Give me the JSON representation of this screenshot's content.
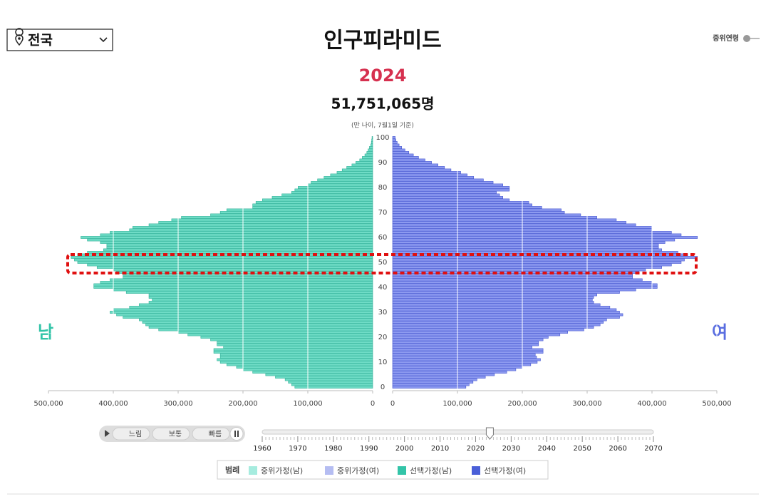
{
  "region": "전국",
  "median_age_toggle": "중위연령",
  "male_label": "남",
  "female_label": "여",
  "speed_buttons": [
    "느림",
    "보통",
    "빠름"
  ],
  "year": 2024,
  "total": "51,751,065명",
  "note": "(만 나이, 7월1일 기준)",
  "timeline": {
    "range": [
      1960,
      2070
    ],
    "ticks": [
      1960,
      1970,
      1980,
      1990,
      2000,
      2010,
      2020,
      2030,
      2040,
      2050,
      2060,
      2070
    ]
  },
  "legend": {
    "title": "범례",
    "items": [
      {
        "name": "중위가정(남)",
        "color": "#a6ecdf"
      },
      {
        "name": "중위가정(여)",
        "color": "#b5bdf2"
      },
      {
        "name": "선택가정(남)",
        "color": "#33c4a8"
      },
      {
        "name": "선택가정(여)",
        "color": "#4a5fd8"
      }
    ]
  },
  "chart_data": {
    "type": "pyramid",
    "title": "인구피라미드",
    "x": [
      0,
      1,
      2,
      3,
      4,
      5,
      6,
      7,
      8,
      9,
      10,
      11,
      12,
      13,
      14,
      15,
      16,
      17,
      18,
      19,
      20,
      21,
      22,
      23,
      24,
      25,
      26,
      27,
      28,
      29,
      30,
      31,
      32,
      33,
      34,
      35,
      36,
      37,
      38,
      39,
      40,
      41,
      42,
      43,
      44,
      45,
      46,
      47,
      48,
      49,
      50,
      51,
      52,
      53,
      54,
      55,
      56,
      57,
      58,
      59,
      60,
      61,
      62,
      63,
      64,
      65,
      66,
      67,
      68,
      69,
      70,
      71,
      72,
      73,
      74,
      75,
      76,
      77,
      78,
      79,
      80,
      81,
      82,
      83,
      84,
      85,
      86,
      87,
      88,
      89,
      90,
      91,
      92,
      93,
      94,
      95,
      96,
      97,
      98,
      99,
      100
    ],
    "ylim": [
      0,
      100
    ],
    "yticks": [
      0,
      10,
      20,
      30,
      40,
      50,
      60,
      70,
      80,
      90,
      100
    ],
    "xlim": [
      0,
      500000
    ],
    "xticks": [
      0,
      {
        "value": 100000,
        "label": "100,000"
      },
      {
        "value": 200000,
        "label": "200,000"
      },
      {
        "value": 300000,
        "label": "300,000"
      },
      {
        "value": 400000,
        "label": "400,000"
      },
      {
        "value": 500000,
        "label": "500,000"
      }
    ],
    "grid": true,
    "series": [
      {
        "name": "선택가정(남)",
        "color": "#6fdcc6",
        "side": "left",
        "values": [
          120000,
          125000,
          130000,
          135000,
          150000,
          165000,
          185000,
          200000,
          210000,
          225000,
          235000,
          240000,
          235000,
          235000,
          245000,
          245000,
          230000,
          240000,
          240000,
          250000,
          265000,
          285000,
          300000,
          330000,
          345000,
          350000,
          355000,
          360000,
          385000,
          395000,
          405000,
          400000,
          375000,
          360000,
          345000,
          340000,
          345000,
          345000,
          380000,
          400000,
          430000,
          430000,
          420000,
          405000,
          385000,
          385000,
          395000,
          400000,
          425000,
          440000,
          455000,
          460000,
          465000,
          455000,
          440000,
          415000,
          410000,
          410000,
          420000,
          440000,
          450000,
          420000,
          405000,
          375000,
          370000,
          345000,
          330000,
          310000,
          295000,
          250000,
          235000,
          225000,
          185000,
          185000,
          180000,
          170000,
          155000,
          140000,
          125000,
          120000,
          115000,
          100000,
          95000,
          85000,
          75000,
          65000,
          55000,
          47000,
          40000,
          32000,
          26000,
          20000,
          16000,
          12000,
          9000,
          7000,
          5000,
          3000,
          2000,
          1500,
          1000
        ]
      },
      {
        "name": "선택가정(여)",
        "color": "#8d9af0",
        "side": "right",
        "values": [
          113000,
          118000,
          124000,
          130000,
          143000,
          157000,
          176000,
          190000,
          200000,
          213000,
          223000,
          228000,
          222000,
          220000,
          232000,
          232000,
          215000,
          225000,
          225000,
          232000,
          240000,
          258000,
          270000,
          295000,
          310000,
          320000,
          325000,
          330000,
          350000,
          355000,
          350000,
          345000,
          335000,
          320000,
          310000,
          308000,
          310000,
          315000,
          350000,
          375000,
          408000,
          408000,
          400000,
          385000,
          370000,
          370000,
          380000,
          390000,
          415000,
          430000,
          445000,
          450000,
          470000,
          455000,
          440000,
          415000,
          410000,
          410000,
          420000,
          435000,
          470000,
          445000,
          430000,
          400000,
          400000,
          375000,
          360000,
          345000,
          315000,
          290000,
          265000,
          260000,
          230000,
          215000,
          210000,
          180000,
          170000,
          165000,
          160000,
          180000,
          180000,
          170000,
          155000,
          140000,
          125000,
          115000,
          105000,
          90000,
          80000,
          70000,
          60000,
          50000,
          40000,
          32000,
          25000,
          19000,
          14000,
          10000,
          7000,
          5000,
          4000
        ]
      }
    ]
  }
}
